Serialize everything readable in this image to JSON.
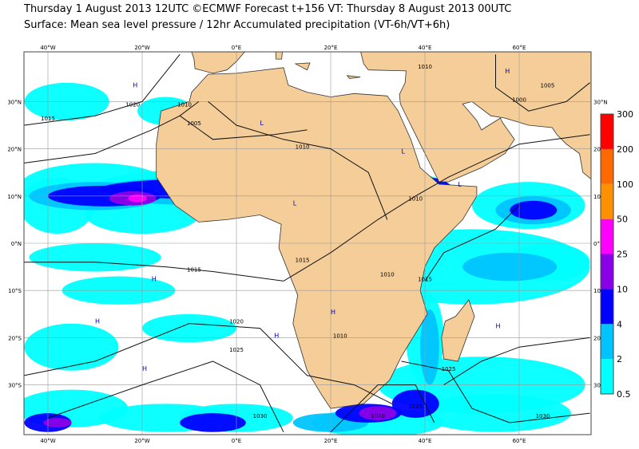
{
  "header": {
    "line1": "Thursday 1 August 2013 12UTC ©ECMWF Forecast t+156 VT: Thursday 8 August 2013 00UTC",
    "line2": "Surface: Mean sea level pressure / 12hr Accumulated precipitation (VT-6h/VT+6h)"
  },
  "map": {
    "longitude_labels": [
      "40°W",
      "20°W",
      "0°E",
      "20°E",
      "40°E",
      "60°E"
    ],
    "latitude_labels": [
      "30°N",
      "20°N",
      "10°N",
      "0°N",
      "10°S",
      "20°S",
      "30°S"
    ],
    "isobar_labels": [
      "1020",
      "1015",
      "1010",
      "1005",
      "1010",
      "1010",
      "1010",
      "1015",
      "1015",
      "1010",
      "1015",
      "1020",
      "1025",
      "1030",
      "1025",
      "1010",
      "1015",
      "1030",
      "1010",
      "1000",
      "1005"
    ],
    "centre_labels": [
      "H",
      "H",
      "H",
      "L",
      "L",
      "L",
      "H",
      "H",
      "H",
      "L",
      "H",
      "H"
    ]
  },
  "colorbar": {
    "levels": [
      0.5,
      2,
      4,
      10,
      25,
      50,
      100,
      200,
      300
    ],
    "colors": [
      "#00ffff",
      "#00c4ff",
      "#0000ff",
      "#8a00e6",
      "#ff00ff",
      "#ff9000",
      "#ff6a00",
      "#ff0000"
    ]
  }
}
